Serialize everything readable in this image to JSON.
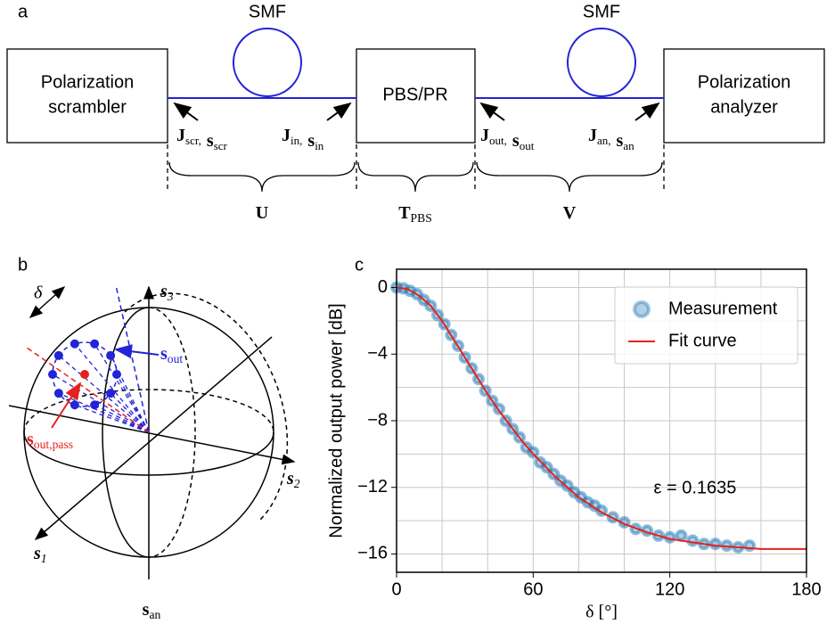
{
  "panel_labels": [
    "a",
    "b",
    "c"
  ],
  "setup": {
    "blocks": [
      [
        "Polarization",
        "scrambler"
      ],
      [
        "PBS/PR"
      ],
      [
        "Polarization",
        "analyzer"
      ]
    ],
    "fibers": [
      "SMF",
      "SMF"
    ],
    "ports": [
      [
        [
          "J",
          "scr,"
        ],
        [
          "s",
          "scr"
        ]
      ],
      [
        [
          "J",
          "in,"
        ],
        [
          "s",
          "in"
        ]
      ],
      [
        [
          "J",
          "out,"
        ],
        [
          "s",
          "out"
        ]
      ],
      [
        [
          "J",
          "an,"
        ],
        [
          "s",
          "an"
        ]
      ]
    ],
    "operators": [
      [
        [
          "U",
          ""
        ]
      ],
      [
        [
          "T",
          "PBS"
        ]
      ],
      [
        [
          "V",
          ""
        ]
      ]
    ]
  },
  "sphere": {
    "delta": "δ",
    "axes": [
      [
        [
          "s",
          "1"
        ]
      ],
      [
        [
          "s",
          "2"
        ]
      ],
      [
        [
          "s",
          "3"
        ]
      ]
    ],
    "s_out": [
      [
        "s",
        "out"
      ]
    ],
    "s_out_pass": [
      [
        "s",
        "out,pass"
      ]
    ],
    "s_an": [
      [
        "s",
        "an"
      ]
    ]
  },
  "chart_data": {
    "type": "scatter",
    "xlabel": "δ [°]",
    "ylabel": "Normalized output power [dB]",
    "annotation": "ε = 0.1635",
    "xlim": [
      0,
      180
    ],
    "ylim": [
      -17.1,
      1.1
    ],
    "xticks": [
      0,
      60,
      120,
      180
    ],
    "yticks": [
      0,
      {
        "value": -4,
        "label": "−4"
      },
      {
        "value": -8,
        "label": "−8"
      },
      {
        "value": -12,
        "label": "−12"
      },
      {
        "value": -16,
        "label": "−16"
      }
    ],
    "grid": true,
    "xgrid": [
      0,
      20,
      40,
      60,
      80,
      100,
      120,
      140,
      160,
      180
    ],
    "ygrid": [
      0,
      -2,
      -4,
      -6,
      -8,
      -10,
      -12,
      -14,
      -16
    ],
    "legend": "upper right",
    "series": [
      {
        "name": "Measurement",
        "color": "#1f77b4",
        "kind": "scatter",
        "x": [
          0,
          3,
          6,
          9,
          12,
          15,
          18,
          21,
          24,
          27,
          30,
          33,
          36,
          39,
          42,
          45,
          48,
          51,
          54,
          57,
          60,
          63,
          66,
          69,
          72,
          75,
          78,
          81,
          84,
          87,
          90,
          95,
          100,
          105,
          110,
          115,
          120,
          125,
          130,
          135,
          140,
          145,
          150,
          155
        ],
        "values": [
          0,
          -0.05,
          -0.2,
          -0.4,
          -0.75,
          -1.1,
          -1.65,
          -2.2,
          -2.85,
          -3.5,
          -4.2,
          -4.85,
          -5.5,
          -6.2,
          -6.8,
          -7.3,
          -8.0,
          -8.5,
          -9.0,
          -9.6,
          -9.9,
          -10.5,
          -10.8,
          -11.2,
          -11.6,
          -11.9,
          -12.3,
          -12.6,
          -12.9,
          -13.1,
          -13.4,
          -13.8,
          -14.1,
          -14.5,
          -14.6,
          -14.9,
          -15.0,
          -14.9,
          -15.2,
          -15.4,
          -15.4,
          -15.5,
          -15.6,
          -15.5
        ]
      },
      {
        "name": "Fit curve",
        "color": "#e8201c",
        "kind": "line",
        "x": [
          0,
          5,
          10,
          15,
          20,
          25,
          30,
          35,
          40,
          45,
          50,
          55,
          60,
          70,
          80,
          90,
          100,
          110,
          120,
          130,
          140,
          150,
          160,
          170,
          180
        ],
        "values": [
          0,
          -0.1,
          -0.5,
          -1.1,
          -2.0,
          -3.1,
          -4.2,
          -5.3,
          -6.4,
          -7.4,
          -8.3,
          -9.2,
          -10.0,
          -11.4,
          -12.6,
          -13.5,
          -14.2,
          -14.7,
          -15.1,
          -15.3,
          -15.5,
          -15.6,
          -15.7,
          -15.7,
          -15.7
        ]
      }
    ]
  }
}
